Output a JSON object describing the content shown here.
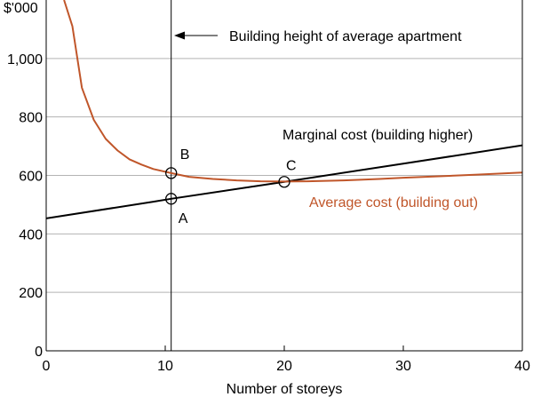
{
  "chart_data": {
    "type": "line",
    "ylabel": "$'000",
    "xlabel": "Number of storeys",
    "xlim": [
      0,
      40
    ],
    "ylim": [
      0,
      1200
    ],
    "x_ticks": [
      "0",
      "10",
      "20",
      "30",
      "40"
    ],
    "y_ticks": [
      "0",
      "200",
      "400",
      "600",
      "800",
      "1,000"
    ],
    "grid": "horizontal",
    "colors": {
      "marginal": "#000000",
      "average": "#c0562a",
      "grid": "#b3b3b3"
    },
    "series": [
      {
        "name": "Marginal cost (building higher)",
        "x": [
          0,
          9,
          10.5,
          20,
          30,
          40
        ],
        "y": [
          453,
          510,
          520,
          578,
          640,
          703
        ]
      },
      {
        "name": "Average cost (building out)",
        "x": [
          1.5,
          2.2,
          3,
          4,
          5,
          6,
          7,
          8,
          9,
          10.5,
          12,
          14,
          16,
          18,
          20,
          22,
          25,
          28,
          30,
          33,
          36,
          40
        ],
        "y": [
          1200,
          1110,
          900,
          790,
          725,
          685,
          655,
          637,
          622,
          608,
          595,
          588,
          583,
          580,
          579,
          580,
          583,
          588,
          592,
          597,
          602,
          610
        ]
      }
    ],
    "reference_line": {
      "x": 10.5,
      "label": "Building height of average apartment"
    },
    "points": [
      {
        "label": "A",
        "x": 10.5,
        "y": 520
      },
      {
        "label": "B",
        "x": 10.5,
        "y": 608
      },
      {
        "label": "C",
        "x": 20,
        "y": 578
      }
    ],
    "annotations": [
      {
        "text": "Marginal cost (building higher)",
        "series": "marginal"
      },
      {
        "text": "Average cost (building out)",
        "series": "average"
      }
    ]
  }
}
